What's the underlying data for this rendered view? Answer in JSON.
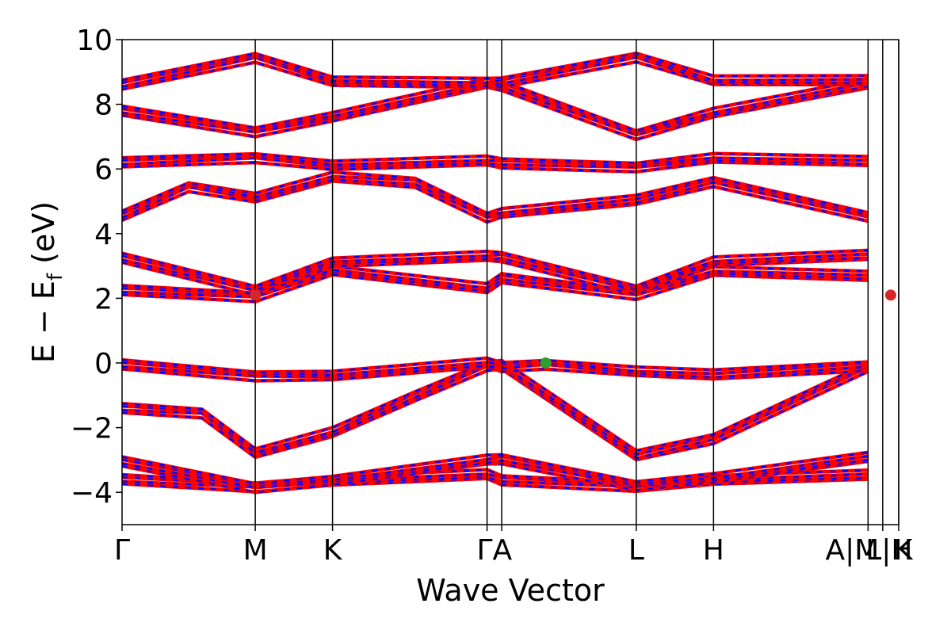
{
  "chart_data": {
    "type": "line",
    "title": "",
    "xlabel": "Wave Vector",
    "ylabel": {
      "main": "E − E",
      "subscript": "f",
      "unit": " (eV)"
    },
    "ylim": [
      -5,
      10
    ],
    "yticks": [
      "−4",
      "−2",
      "0",
      "2",
      "4",
      "6",
      "8",
      "10"
    ],
    "ytick_values": [
      -4,
      -2,
      0,
      2,
      4,
      6,
      8,
      10
    ],
    "x_range": [
      0,
      5.83
    ],
    "kpoints": [
      {
        "label": "Γ",
        "x": 0.0
      },
      {
        "label": "M",
        "x": 1.0
      },
      {
        "label": "K",
        "x": 1.58
      },
      {
        "label": "Γ",
        "x": 2.74
      },
      {
        "label": "A",
        "x": 2.85
      },
      {
        "label": "L",
        "x": 3.86
      },
      {
        "label": "H",
        "x": 4.44
      },
      {
        "label": "A",
        "x": 5.6
      },
      {
        "label": "M",
        "x": 5.6
      },
      {
        "label": "L",
        "x": 5.71
      },
      {
        "label": "L",
        "x": 5.71
      },
      {
        "label": "K",
        "x": 5.83
      }
    ],
    "tick_labels_display": [
      "Γ",
      "M",
      "K",
      "ΓA",
      "L",
      "H",
      "A|M",
      "L|H",
      "K"
    ],
    "vertical_lines": [
      1.0,
      1.58,
      2.74,
      2.85,
      3.86,
      4.44,
      5.6,
      5.71,
      5.83
    ],
    "grid": false,
    "series_colors": {
      "spin_up": "#ff0000",
      "spin_down": "#0000ff"
    },
    "band_groups": [
      {
        "name": "",
        "anchors": [
          [
            0.0,
            -3.6
          ],
          [
            1.0,
            -3.78
          ],
          [
            1.58,
            -3.66
          ],
          [
            2.74,
            -3.5
          ],
          [
            2.85,
            -3.6
          ],
          [
            3.86,
            -3.78
          ],
          [
            4.44,
            -3.66
          ],
          [
            5.6,
            -3.5
          ]
        ]
      },
      {
        "name": "",
        "anchors": [
          [
            0.0,
            -3.05
          ],
          [
            1.0,
            -3.8
          ],
          [
            1.58,
            -3.65
          ],
          [
            2.74,
            -3.05
          ],
          [
            2.85,
            -2.95
          ],
          [
            3.86,
            -3.75
          ],
          [
            4.44,
            -3.6
          ],
          [
            5.6,
            -2.95
          ]
        ]
      },
      {
        "name": "",
        "anchors": [
          [
            0.0,
            -1.4
          ],
          [
            0.6,
            -1.5
          ],
          [
            1.0,
            -2.8
          ],
          [
            1.58,
            -2.2
          ],
          [
            2.2,
            -1.0
          ],
          [
            2.74,
            -0.05
          ],
          [
            2.85,
            -0.1
          ],
          [
            3.86,
            -2.9
          ],
          [
            4.44,
            -2.3
          ],
          [
            5.6,
            -0.1
          ]
        ]
      },
      {
        "name": "",
        "anchors": [
          [
            0.0,
            -0.05
          ],
          [
            1.0,
            -0.35
          ],
          [
            1.58,
            -0.4
          ],
          [
            2.74,
            -0.05
          ],
          [
            2.85,
            -0.1
          ],
          [
            3.18,
            0.0
          ],
          [
            3.86,
            -0.3
          ],
          [
            4.44,
            -0.4
          ],
          [
            5.6,
            -0.05
          ]
        ]
      },
      {
        "name": "",
        "anchors": [
          [
            0.0,
            2.25
          ],
          [
            1.0,
            2.1
          ],
          [
            1.58,
            2.85
          ],
          [
            2.74,
            2.25
          ],
          [
            2.85,
            2.65
          ],
          [
            3.86,
            2.15
          ],
          [
            4.44,
            2.8
          ],
          [
            5.6,
            2.65
          ]
        ]
      },
      {
        "name": "",
        "anchors": [
          [
            0.0,
            3.25
          ],
          [
            1.0,
            2.3
          ],
          [
            1.58,
            3.1
          ],
          [
            2.74,
            3.25
          ],
          [
            2.85,
            3.3
          ],
          [
            3.86,
            2.3
          ],
          [
            4.44,
            3.1
          ],
          [
            5.6,
            3.3
          ]
        ]
      },
      {
        "name": "",
        "anchors": [
          [
            0.0,
            4.55
          ],
          [
            0.5,
            5.5
          ],
          [
            1.0,
            5.1
          ],
          [
            1.58,
            5.7
          ],
          [
            2.2,
            5.6
          ],
          [
            2.74,
            4.55
          ],
          [
            2.85,
            4.6
          ],
          [
            3.86,
            5.0
          ],
          [
            4.44,
            5.65
          ],
          [
            5.6,
            4.55
          ]
        ]
      },
      {
        "name": "",
        "anchors": [
          [
            0.0,
            6.2
          ],
          [
            1.0,
            6.4
          ],
          [
            1.58,
            6.1
          ],
          [
            2.74,
            6.2
          ],
          [
            2.85,
            6.2
          ],
          [
            3.86,
            6.1
          ],
          [
            4.44,
            6.3
          ],
          [
            5.6,
            6.2
          ]
        ]
      },
      {
        "name": "",
        "anchors": [
          [
            0.0,
            7.8
          ],
          [
            1.0,
            7.2
          ],
          [
            1.58,
            7.6
          ],
          [
            2.74,
            8.6
          ],
          [
            2.85,
            8.6
          ],
          [
            3.86,
            7.1
          ],
          [
            4.44,
            7.7
          ],
          [
            5.6,
            8.6
          ]
        ]
      },
      {
        "name": "",
        "anchors": [
          [
            0.0,
            8.6
          ],
          [
            1.0,
            9.5
          ],
          [
            1.58,
            8.7
          ],
          [
            2.74,
            8.6
          ],
          [
            2.85,
            8.7
          ],
          [
            3.86,
            9.5
          ],
          [
            4.44,
            8.7
          ],
          [
            5.6,
            8.7
          ]
        ]
      }
    ],
    "markers": [
      {
        "label": "",
        "x": 1.0,
        "y": 2.1,
        "color": "#d62728"
      },
      {
        "label": "",
        "x": 5.77,
        "y": 2.1,
        "color": "#d62728"
      },
      {
        "label": "",
        "x": 3.18,
        "y": 0.0,
        "color": "#2ca02c"
      }
    ]
  }
}
